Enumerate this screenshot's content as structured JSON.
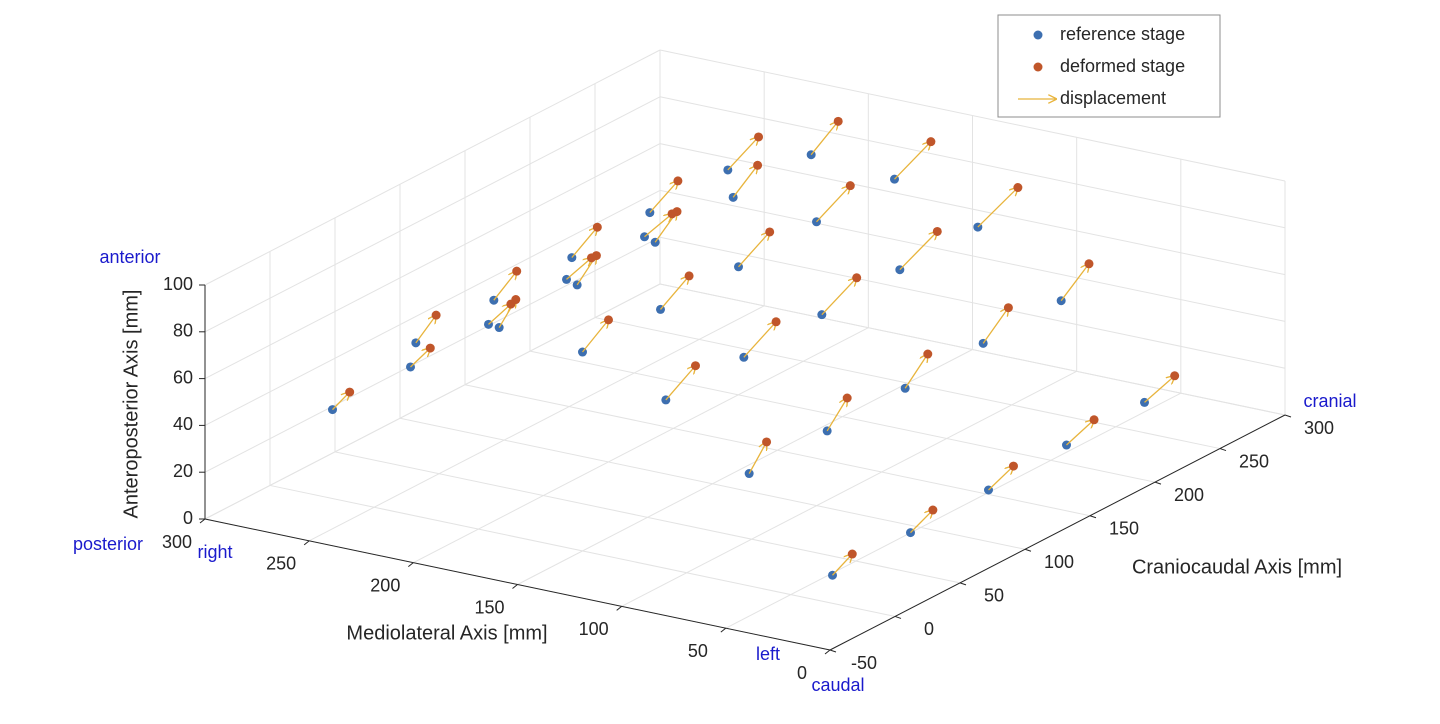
{
  "chart_data": {
    "type": "scatter3d",
    "x_label": "Mediolateral Axis [mm]",
    "y_label": "Craniocaudal Axis  [mm]",
    "z_label": "Anteroposterior Axis [mm]",
    "direction_labels": {
      "z_high": "anterior",
      "z_low": "posterior",
      "x_high": "right",
      "x_low": "left",
      "y_high": "cranial",
      "y_low": "caudal"
    },
    "xlim": [
      0,
      300
    ],
    "xticks": [
      0,
      50,
      100,
      150,
      200,
      250,
      300
    ],
    "ylim": [
      -50,
      300
    ],
    "yticks": [
      -50,
      0,
      50,
      100,
      150,
      200,
      250,
      300
    ],
    "zlim": [
      0,
      100
    ],
    "zticks": [
      0,
      20,
      40,
      60,
      80,
      100
    ],
    "grid": true,
    "legend": "upper right",
    "series": [
      {
        "name": "reference stage",
        "color": "#3d6fb0",
        "x": [
          30,
          70,
          110,
          150,
          190,
          230,
          270,
          30,
          70,
          110,
          150,
          190,
          230,
          270,
          30,
          70,
          110,
          150,
          190,
          230,
          270,
          30,
          70,
          110,
          150,
          190,
          230,
          270,
          30,
          70,
          110,
          150,
          190,
          230,
          270
        ],
        "y": [
          0,
          0,
          0,
          0,
          0,
          0,
          0,
          60,
          60,
          60,
          60,
          60,
          60,
          60,
          120,
          120,
          120,
          120,
          120,
          120,
          120,
          180,
          180,
          180,
          180,
          180,
          180,
          180,
          240,
          240,
          240,
          240,
          240,
          240,
          240
        ],
        "z": [
          12,
          48,
          72,
          85,
          88,
          74,
          38,
          13,
          49,
          73,
          86,
          89,
          75,
          39,
          14,
          50,
          74,
          87,
          90,
          76,
          40,
          16,
          52,
          76,
          89,
          92,
          78,
          42,
          17,
          53,
          77,
          90,
          93,
          79,
          43
        ]
      },
      {
        "name": "deformed stage",
        "color": "#c0562a",
        "x": [
          28,
          71,
          107,
          150,
          192,
          229,
          268,
          28,
          71,
          107,
          150,
          192,
          229,
          268,
          28,
          71,
          107,
          150,
          192,
          229,
          268,
          28,
          71,
          107,
          150,
          192,
          229,
          268,
          28,
          71,
          107,
          150,
          192,
          229,
          268
        ],
        "y": [
          12,
          15,
          18,
          20,
          16,
          14,
          10,
          74,
          77,
          80,
          82,
          78,
          76,
          72,
          136,
          139,
          142,
          144,
          140,
          138,
          134,
          198,
          201,
          204,
          206,
          202,
          200,
          196,
          260,
          263,
          266,
          268,
          264,
          262,
          258
        ],
        "z": [
          18,
          57,
          82,
          93,
          95,
          82,
          43,
          19,
          58,
          83,
          94,
          96,
          83,
          44,
          20,
          59,
          84,
          95,
          97,
          84,
          45,
          22,
          61,
          86,
          97,
          99,
          86,
          47,
          23,
          62,
          87,
          98,
          100,
          87,
          48
        ]
      }
    ],
    "arrows": {
      "name": "displacement",
      "color": "#e8b43c"
    }
  }
}
